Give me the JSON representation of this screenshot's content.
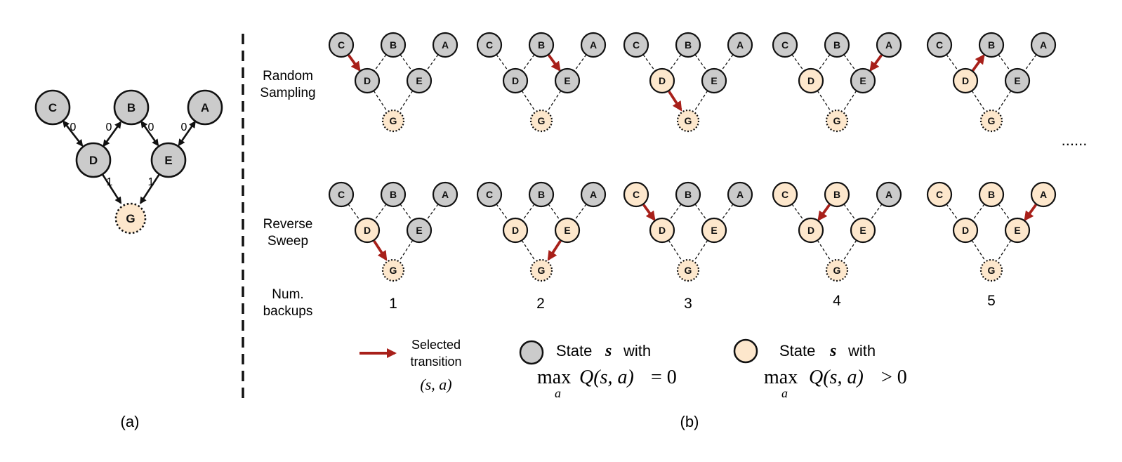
{
  "colors": {
    "grey_node": "#cbcbcb",
    "peach_node": "#fde7cc",
    "selected_arrow": "#a8201a",
    "stroke": "#111111"
  },
  "node_labels": [
    "C",
    "B",
    "A",
    "D",
    "E",
    "G"
  ],
  "panel_a": {
    "caption": "(a)",
    "edge_rewards": [
      "0",
      "0",
      "0",
      "0",
      "1",
      "1"
    ]
  },
  "panel_b": {
    "caption": "(b)",
    "row_labels": {
      "random": [
        "Random",
        "Sampling"
      ],
      "reverse": [
        "Reverse",
        "Sweep"
      ],
      "backups": [
        "Num.",
        "backups"
      ]
    },
    "backup_counts": [
      "1",
      "2",
      "3",
      "4",
      "5"
    ],
    "ellipsis": "......",
    "legend": {
      "selected": [
        "Selected",
        "transition"
      ],
      "selected_math": "(s, a)",
      "state_prefix": "State",
      "state_var": "s",
      "state_suffix": "with",
      "max_op": "max",
      "max_sub": "a",
      "q_expr": "Q(s, a)",
      "eq_zero": "= 0",
      "gt_zero": "> 0"
    }
  },
  "random_sampling_steps": [
    {
      "peach": [],
      "selected": [
        "C",
        "D"
      ]
    },
    {
      "peach": [],
      "selected": [
        "B",
        "E"
      ]
    },
    {
      "peach": [
        "D"
      ],
      "selected": [
        "D",
        "G"
      ]
    },
    {
      "peach": [
        "D"
      ],
      "selected": [
        "A",
        "E"
      ]
    },
    {
      "peach": [
        "D"
      ],
      "selected": [
        "D",
        "B"
      ]
    }
  ],
  "reverse_sweep_steps": [
    {
      "peach": [
        "D"
      ],
      "selected": [
        "D",
        "G"
      ]
    },
    {
      "peach": [
        "D",
        "E"
      ],
      "selected": [
        "E",
        "G"
      ]
    },
    {
      "peach": [
        "C",
        "D",
        "E"
      ],
      "selected": [
        "C",
        "D"
      ]
    },
    {
      "peach": [
        "C",
        "B",
        "D",
        "E"
      ],
      "selected": [
        "B",
        "D"
      ]
    },
    {
      "peach": [
        "C",
        "B",
        "A",
        "D",
        "E"
      ],
      "selected": [
        "A",
        "E"
      ]
    }
  ]
}
